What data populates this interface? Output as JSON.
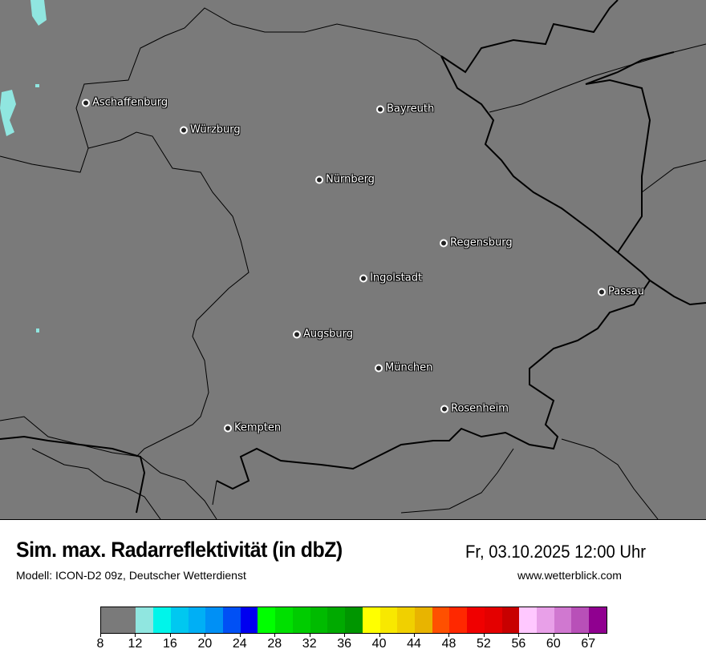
{
  "header": {
    "title": "Sim. max. Radarreflektivität (in dbZ)",
    "datetime": "Fr, 03.10.2025 12:00 Uhr",
    "model": "Modell: ICON-D2 09z, Deutscher Wetterdienst",
    "website": "www.wetterblick.com"
  },
  "cities": [
    {
      "name": "Aschaffenburg"
    },
    {
      "name": "Würzburg"
    },
    {
      "name": "Bayreuth"
    },
    {
      "name": "Nürnberg"
    },
    {
      "name": "Regensburg"
    },
    {
      "name": "Ingolstadt"
    },
    {
      "name": "Passau"
    },
    {
      "name": "Augsburg"
    },
    {
      "name": "München"
    },
    {
      "name": "Rosenheim"
    },
    {
      "name": "Kempten"
    }
  ],
  "legend": {
    "colors": [
      "#7a7a7a",
      "#90e6e0",
      "#00f5ea",
      "#00c8f0",
      "#00aff5",
      "#0090f5",
      "#0050f5",
      "#0000f0",
      "#00ff00",
      "#00e000",
      "#00cc00",
      "#00bb00",
      "#00aa00",
      "#009600",
      "#ffff00",
      "#f8e800",
      "#f0d000",
      "#e8b400",
      "#ff5000",
      "#ff2800",
      "#f00000",
      "#e40000",
      "#c80000",
      "#ffc8ff",
      "#e8a0e8",
      "#d078d0",
      "#b850b8",
      "#900090"
    ],
    "ticks": [
      "8",
      "12",
      "16",
      "20",
      "24",
      "28",
      "32",
      "36",
      "40",
      "44",
      "48",
      "52",
      "56",
      "60",
      "67"
    ]
  },
  "precip_color": "#90e6e0"
}
